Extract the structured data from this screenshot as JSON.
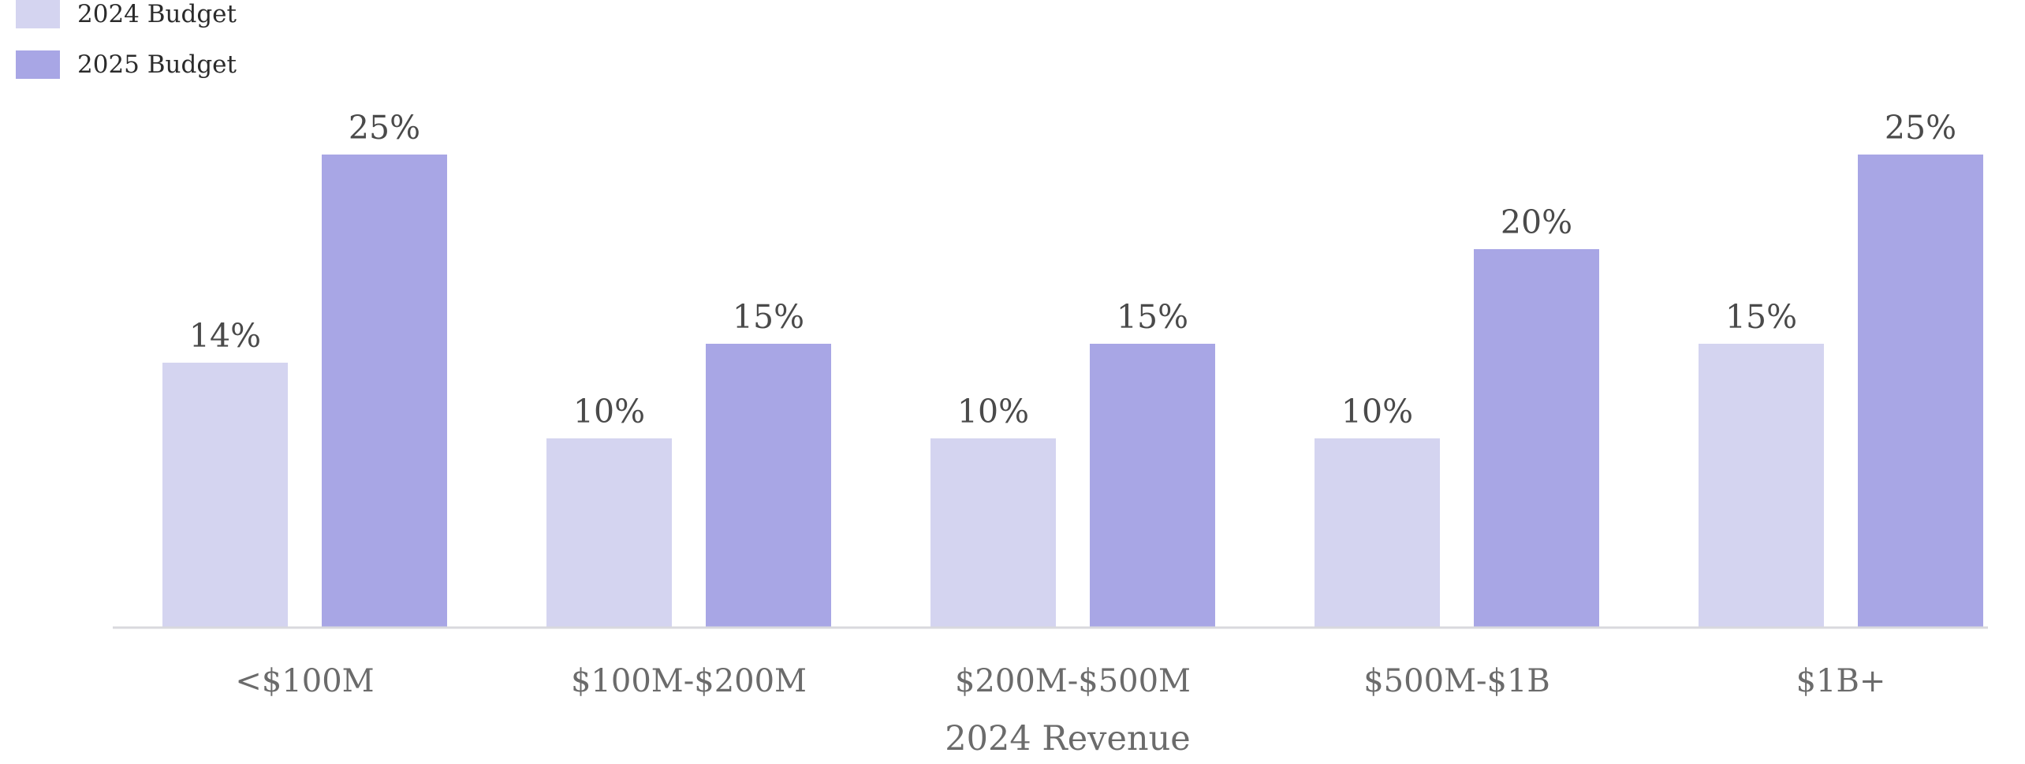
{
  "chart_data": {
    "type": "bar",
    "xlabel": "2024 Revenue",
    "ylabel": "",
    "ylim": [
      0,
      25
    ],
    "legend_position": "top-left",
    "grid": false,
    "categories": [
      "<$100M",
      "$100M-$200M",
      "$200M-$500M",
      "$500M-$1B",
      "$1B+"
    ],
    "series": [
      {
        "name": "2024 Budget",
        "color": "#d4d4f0",
        "values": [
          14,
          10,
          10,
          10,
          15
        ],
        "labels": [
          "14%",
          "10%",
          "10%",
          "10%",
          "15%"
        ]
      },
      {
        "name": "2025 Budget",
        "color": "#a8a6e5",
        "values": [
          25,
          15,
          15,
          20,
          25
        ],
        "labels": [
          "25%",
          "15%",
          "15%",
          "20%",
          "25%"
        ]
      }
    ],
    "colors": {
      "axis": "#d9d9de",
      "tick_text": "#6b6b6b",
      "data_label_text": "#4a4a4a"
    }
  }
}
